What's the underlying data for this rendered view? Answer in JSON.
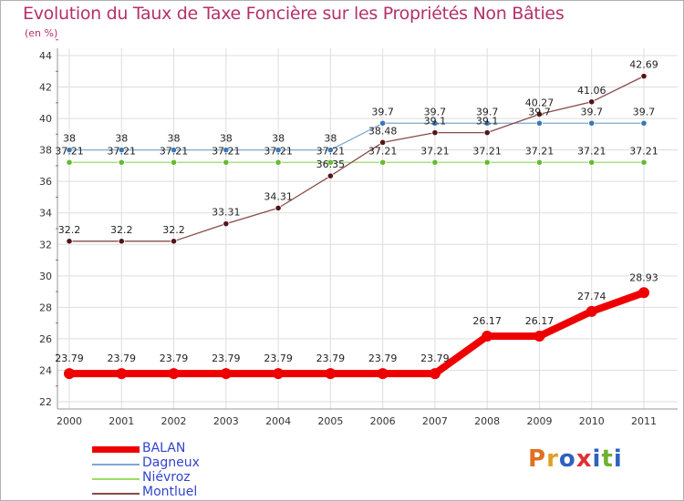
{
  "header": {
    "title": "Evolution du Taux de Taxe Foncière sur les Propriétés Non Bâties",
    "subtitle": "(en %)"
  },
  "logo": {
    "text": "Proxiti",
    "colors": [
      "#e07020",
      "#e0a020",
      "#3060c0",
      "#e03030",
      "#3060c0",
      "#70b030",
      "#3060c0"
    ]
  },
  "chart_data": {
    "type": "line",
    "x": [
      "2000",
      "2001",
      "2002",
      "2003",
      "2004",
      "2005",
      "2006",
      "2007",
      "2008",
      "2009",
      "2010",
      "2011"
    ],
    "ylim": [
      22,
      44
    ],
    "yticks": [
      22,
      24,
      26,
      28,
      30,
      32,
      34,
      36,
      38,
      40,
      42,
      44
    ],
    "grid": true,
    "legend_position": "bottom-left",
    "series": [
      {
        "name": "BALAN",
        "color": "#ee0000",
        "width": 8,
        "marker": 6,
        "values": [
          23.79,
          23.79,
          23.79,
          23.79,
          23.79,
          23.79,
          23.79,
          23.79,
          26.17,
          26.17,
          27.74,
          28.93
        ],
        "labels": [
          "23.79",
          "23.79",
          "23.79",
          "23.79",
          "23.79",
          "23.79",
          "23.79",
          "23.79",
          "26.17",
          "26.17",
          "27.74",
          "28.93"
        ]
      },
      {
        "name": "Dagneux",
        "color": "#7fa8d0",
        "width": 1.3,
        "marker": 3.2,
        "markerColor": "#3a78b8",
        "values": [
          38,
          38,
          38,
          38,
          38,
          38,
          39.7,
          39.7,
          39.7,
          39.7,
          39.7,
          39.7
        ],
        "labels": [
          "38",
          "38",
          "38",
          "38",
          "38",
          "38",
          "39.7",
          "39.7",
          "39.7",
          "39.7",
          "39.7",
          "39.7"
        ]
      },
      {
        "name": "Niévroz",
        "color": "#99dd66",
        "width": 1.3,
        "marker": 3.2,
        "markerColor": "#66bb33",
        "values": [
          37.21,
          37.21,
          37.21,
          37.21,
          37.21,
          37.21,
          37.21,
          37.21,
          37.21,
          37.21,
          37.21,
          37.21
        ],
        "labels": [
          "37.21",
          "37.21",
          "37.21",
          "37.21",
          "37.21",
          "37.21",
          "37.21",
          "37.21",
          "37.21",
          "37.21",
          "37.21",
          "37.21"
        ]
      },
      {
        "name": "Montluel",
        "color": "#8a4a4a",
        "width": 1.3,
        "marker": 3.2,
        "markerColor": "#551515",
        "values": [
          32.2,
          32.2,
          32.2,
          33.31,
          34.31,
          36.35,
          38.48,
          39.1,
          39.1,
          40.27,
          41.06,
          42.69
        ],
        "labels": [
          "32.2",
          "32.2",
          "32.2",
          "33.31",
          "34.31",
          "36.35",
          "38.48",
          "39.1",
          "39.1",
          "40.27",
          "41.06",
          "42.69"
        ]
      }
    ]
  }
}
